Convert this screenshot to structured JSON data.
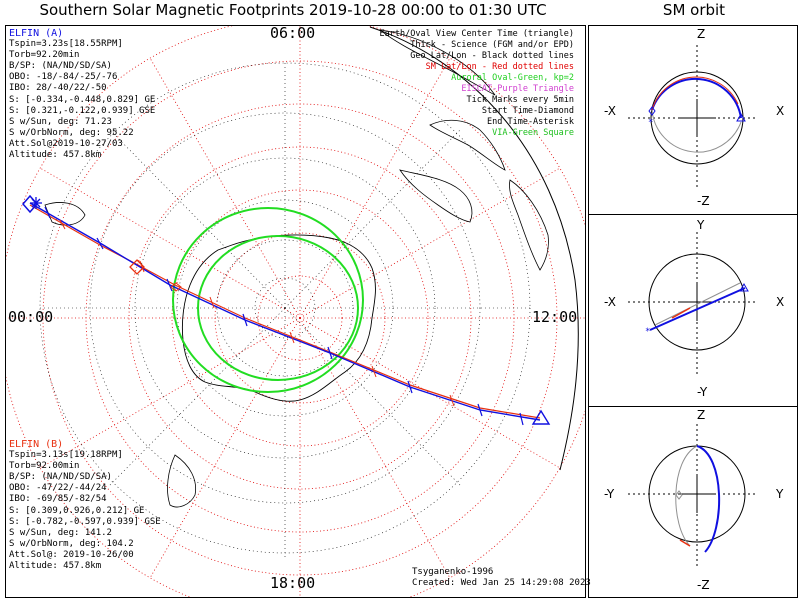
{
  "title": "Southern Solar Magnetic Footprints 2019-10-28 00:00 to 01:30 UTC",
  "orbit_title": "SM orbit",
  "mlt_labels": {
    "top": "06:00",
    "left": "00:00",
    "right": "12:00",
    "bottom": "18:00"
  },
  "sat_a": {
    "name": "ELFIN (A)",
    "lines": [
      "Tspin=3.23s[18.55RPM]",
      "Torb=92.20min",
      "B/SP: (NA/ND/SD/SA)",
      "OBO: -18/-84/-25/-76",
      "IBO: 28/-40/22/-50",
      "S: [-0.334,-0.448,0.829] GE",
      "S: [0.321,-0.122,0.939] GSE",
      "S w/Sun, deg: 71.23",
      "S w/OrbNorm, deg: 95.22",
      "Att.Sol@2019-10-27/03",
      "Altitude: 457.8km"
    ],
    "color": "#1010e0"
  },
  "sat_b": {
    "name": "ELFIN (B)",
    "lines": [
      "Tspin=3.13s[19.18RPM]",
      "Torb=92.00min",
      "B/SP: (NA/ND/SD/SA)",
      "OBO: -47/22/-44/24",
      "IBO: -69/85/-82/54",
      "S: [0.309,0.926,0.212] GE",
      "S: [-0.782,-0.597,0.939] GSE",
      "S w/Sun, deg: 141.2",
      "S w/OrbNorm, deg: 104.2",
      "Att.Sol@: 2019-10-26/00",
      "Altitude: 457.8km"
    ],
    "color": "#e83010"
  },
  "legend": [
    {
      "text": "Earth/Oval View Center Time (triangle)",
      "color": "#000000"
    },
    {
      "text": "Thick - Science (FGM and/or EPD)",
      "color": "#000000"
    },
    {
      "text": "Geo Lat/Lon - Black dotted lines",
      "color": "#000000"
    },
    {
      "text": "SM Lat/Lon - Red dotted lines",
      "color": "#e00000"
    },
    {
      "text": "Auroral Oval-Green, kp=2",
      "color": "#20d020"
    },
    {
      "text": "EISCAT-Purple Triangle",
      "color": "#d040d0"
    },
    {
      "text": "Tick Marks every 5min",
      "color": "#000000"
    },
    {
      "text": "Start Time-Diamond",
      "color": "#000000"
    },
    {
      "text": "End Time-Asterisk",
      "color": "#000000"
    },
    {
      "text": "VIA-Green Square",
      "color": "#20c020"
    }
  ],
  "model_credit": "Tsyganenko-1996",
  "created": "Created: Wed Jan 25 14:29:08 2023",
  "orbit_panels": [
    {
      "top": "Z",
      "bottom": "-Z",
      "left": "-X",
      "right": "X"
    },
    {
      "top": "Y",
      "bottom": "-Y",
      "left": "-X",
      "right": "X"
    },
    {
      "top": "Z",
      "bottom": "-Z",
      "left": "-Y",
      "right": "Y"
    }
  ],
  "colors": {
    "oval": "#22dd22",
    "sm_grid": "#e00000",
    "track_a": "#1010e0",
    "track_b": "#e83010"
  }
}
